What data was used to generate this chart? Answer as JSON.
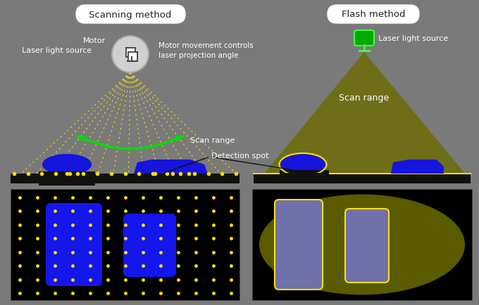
{
  "bg_color": "#7a7a7a",
  "title_scanning": "Scanning method",
  "title_flash": "Flash method",
  "label_motor": "Motor",
  "label_laser_left": "Laser light source",
  "label_motor_text": "Motor movement controls\nlaser projection angle",
  "label_scan_range_left": "Scan range",
  "label_detection_spot": "Detection spot",
  "label_laser_right": "Laser light source",
  "label_scan_range_right": "Scan range",
  "yellow": "#FFE000",
  "blue": "#1a1aff",
  "green": "#00DD00",
  "olive": "#6b6b00",
  "white": "#FFFFFF",
  "black": "#000000",
  "motor_gray": "#d0d0d0",
  "motor_outline": "#888888"
}
